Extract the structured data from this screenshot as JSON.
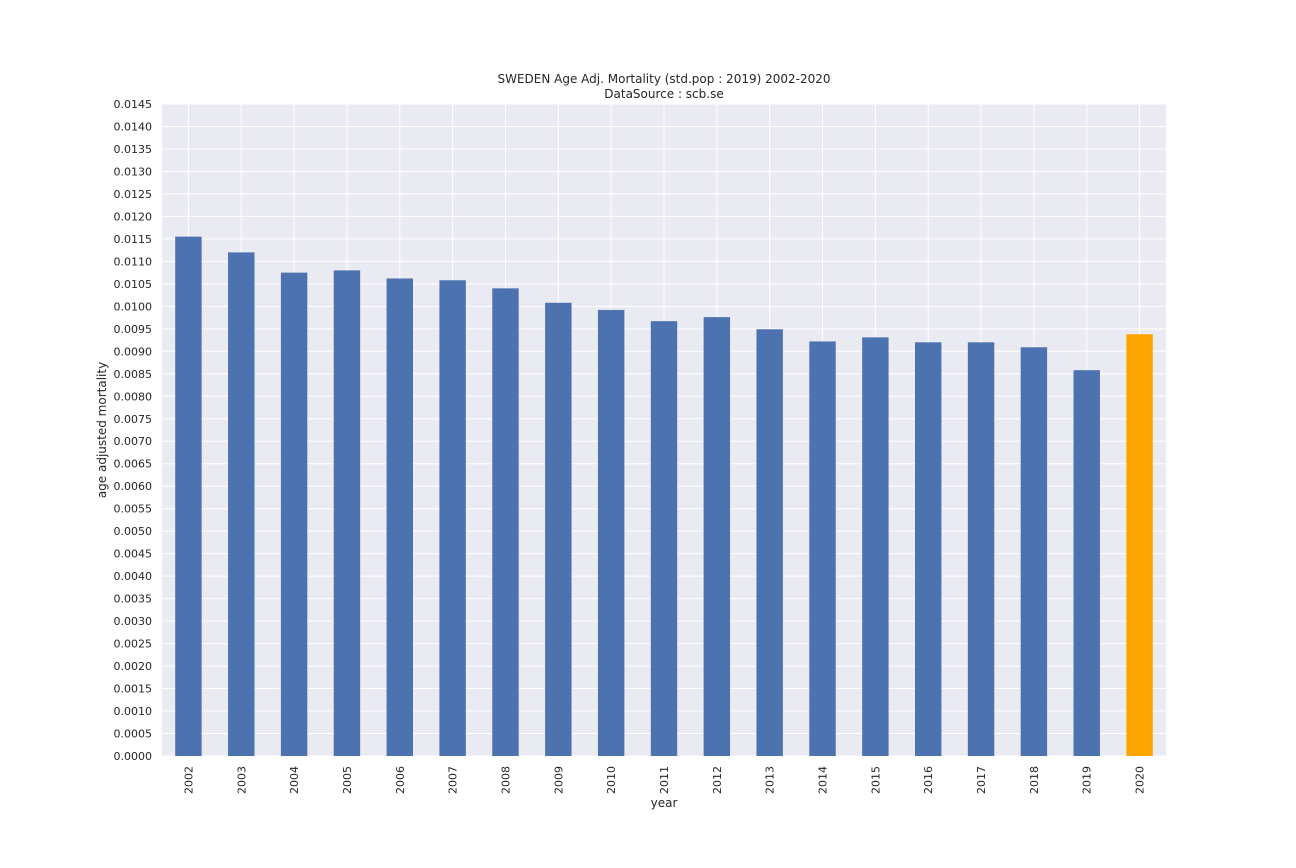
{
  "chart_data": {
    "type": "bar",
    "title": "SWEDEN Age Adj. Mortality (std.pop : 2019) 2002-2020",
    "subtitle": "DataSource : scb.se",
    "xlabel": "year",
    "ylabel": "age adjusted mortality",
    "ylim": [
      0,
      0.0145
    ],
    "ytick_step": 0.0005,
    "grid": true,
    "categories": [
      "2002",
      "2003",
      "2004",
      "2005",
      "2006",
      "2007",
      "2008",
      "2009",
      "2010",
      "2011",
      "2012",
      "2013",
      "2014",
      "2015",
      "2016",
      "2017",
      "2018",
      "2019",
      "2020"
    ],
    "values": [
      0.01155,
      0.0112,
      0.01075,
      0.0108,
      0.01062,
      0.01058,
      0.0104,
      0.01008,
      0.00992,
      0.00967,
      0.00976,
      0.00949,
      0.00922,
      0.00931,
      0.0092,
      0.0092,
      0.00909,
      0.00858,
      0.00938
    ],
    "highlight_category": "2020",
    "colors": {
      "bar": "#4c72b0",
      "highlight": "#ffa500",
      "plot_background": "#eaeaf2",
      "grid": "#ffffff"
    }
  }
}
